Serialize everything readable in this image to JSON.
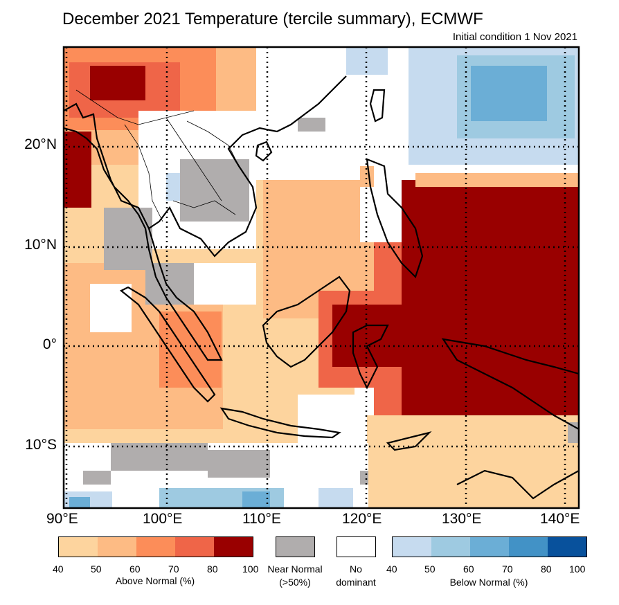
{
  "title": "December 2021 Temperature (tercile summary), ECMWF",
  "subtitle": "Initial condition 1 Nov 2021",
  "map": {
    "lon_range": [
      90,
      142
    ],
    "lat_range": [
      -16,
      30
    ],
    "lat_labels": [
      "20°N",
      "10°N",
      "0°",
      "10°S"
    ],
    "lon_labels": [
      "90°E",
      "100°E",
      "110°E",
      "120°E",
      "130°E",
      "140°E"
    ],
    "gridlines": "dotted"
  },
  "legend": {
    "above": {
      "caption": "Above Normal (%)",
      "ticks": [
        "40",
        "50",
        "60",
        "70",
        "80",
        "100"
      ],
      "colors": [
        "#fdd49e",
        "#fdbb84",
        "#fc8d59",
        "#ef6548",
        "#990000"
      ]
    },
    "near": {
      "caption": "Near Normal (>50%)",
      "line1": "Near Normal",
      "line2": "(>50%)",
      "color": "#b0adad"
    },
    "none": {
      "line1": "No",
      "line2": "dominant",
      "color": "#ffffff"
    },
    "below": {
      "caption": "Below Normal (%)",
      "ticks": [
        "40",
        "50",
        "60",
        "70",
        "80",
        "100"
      ],
      "colors": [
        "#c6dbef",
        "#9ecae1",
        "#6baed6",
        "#4292c6",
        "#08519c"
      ]
    }
  }
}
